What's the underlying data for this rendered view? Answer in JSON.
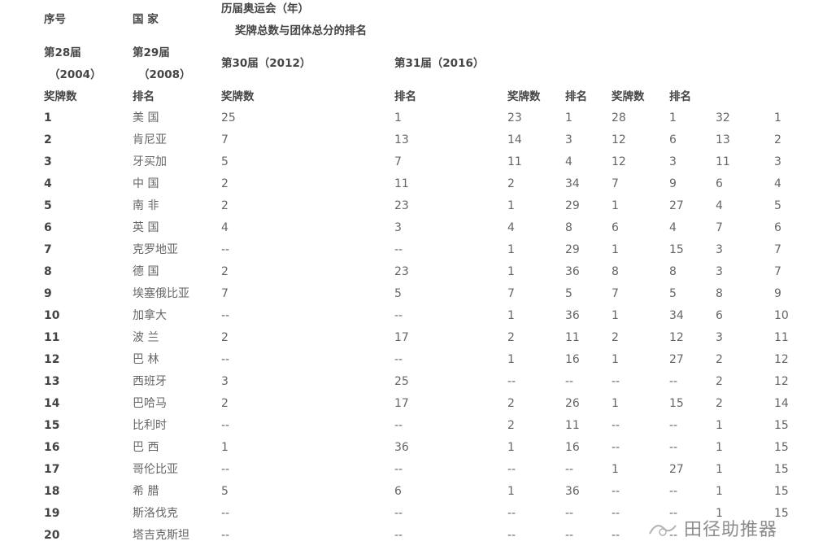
{
  "header": {
    "seq": "序号",
    "country": "国 家",
    "olympics": "历届奥运会（年）",
    "subtitle": "奖牌总数与团体总分的排名",
    "g28": "第28届",
    "g28_year": "（2004）",
    "g29": "第29届",
    "g29_year": "（2008）",
    "g30": "第30届（2012）",
    "g31": "第31届（2016）",
    "sub": [
      "奖牌数",
      "排名",
      "奖牌数",
      "排名",
      "奖牌数",
      "排名",
      "奖牌数",
      "排名"
    ]
  },
  "rows": [
    [
      "1",
      "美 国",
      "25",
      "1",
      "23",
      "1",
      "28",
      "1",
      "32",
      "1"
    ],
    [
      "2",
      "肯尼亚",
      "7",
      "13",
      "14",
      "3",
      "12",
      "6",
      "13",
      "2"
    ],
    [
      "3",
      "牙买加",
      "5",
      "7",
      "11",
      "4",
      "12",
      "3",
      "11",
      "3"
    ],
    [
      "4",
      "中 国",
      "2",
      "11",
      "2",
      "34",
      "7",
      "9",
      "6",
      "4"
    ],
    [
      "5",
      "南 非",
      "2",
      "23",
      "1",
      "29",
      "1",
      "27",
      "4",
      "5"
    ],
    [
      "6",
      "英 国",
      "4",
      "3",
      "4",
      "8",
      "6",
      "4",
      "7",
      "6"
    ],
    [
      "7",
      "克罗地亚",
      "--",
      "--",
      "1",
      "29",
      "1",
      "15",
      "3",
      "7"
    ],
    [
      "8",
      "德 国",
      "2",
      "23",
      "1",
      "36",
      "8",
      "8",
      "3",
      "7"
    ],
    [
      "9",
      "埃塞俄比亚",
      "7",
      "5",
      "7",
      "5",
      "7",
      "5",
      "8",
      "9"
    ],
    [
      "10",
      "加拿大",
      "--",
      "--",
      "1",
      "36",
      "1",
      "34",
      "6",
      "10"
    ],
    [
      "11",
      "波 兰",
      "2",
      "17",
      "2",
      "11",
      "2",
      "12",
      "3",
      "11"
    ],
    [
      "12",
      "巴 林",
      "--",
      "--",
      "1",
      "16",
      "1",
      "27",
      "2",
      "12"
    ],
    [
      "13",
      "西班牙",
      "3",
      "25",
      "--",
      "--",
      "--",
      "--",
      "2",
      "12"
    ],
    [
      "14",
      "巴哈马",
      "2",
      "17",
      "2",
      "26",
      "1",
      "15",
      "2",
      "14"
    ],
    [
      "15",
      "比利时",
      "--",
      "--",
      "2",
      "11",
      "--",
      "--",
      "1",
      "15"
    ],
    [
      "16",
      "巴 西",
      "1",
      "36",
      "1",
      "16",
      "--",
      "--",
      "1",
      "15"
    ],
    [
      "17",
      "哥伦比亚",
      "--",
      "--",
      "--",
      "--",
      "1",
      "27",
      "1",
      "15"
    ],
    [
      "18",
      "希 腊",
      "5",
      "6",
      "1",
      "36",
      "--",
      "--",
      "1",
      "15"
    ],
    [
      "19",
      "斯洛伐克",
      "--",
      "--",
      "--",
      "--",
      "--",
      "--",
      "1",
      "15"
    ],
    [
      "20",
      "塔吉克斯坦",
      "--",
      "--",
      "--",
      "--",
      "--",
      "--",
      "",
      ""
    ]
  ],
  "watermark": "田径助推器"
}
